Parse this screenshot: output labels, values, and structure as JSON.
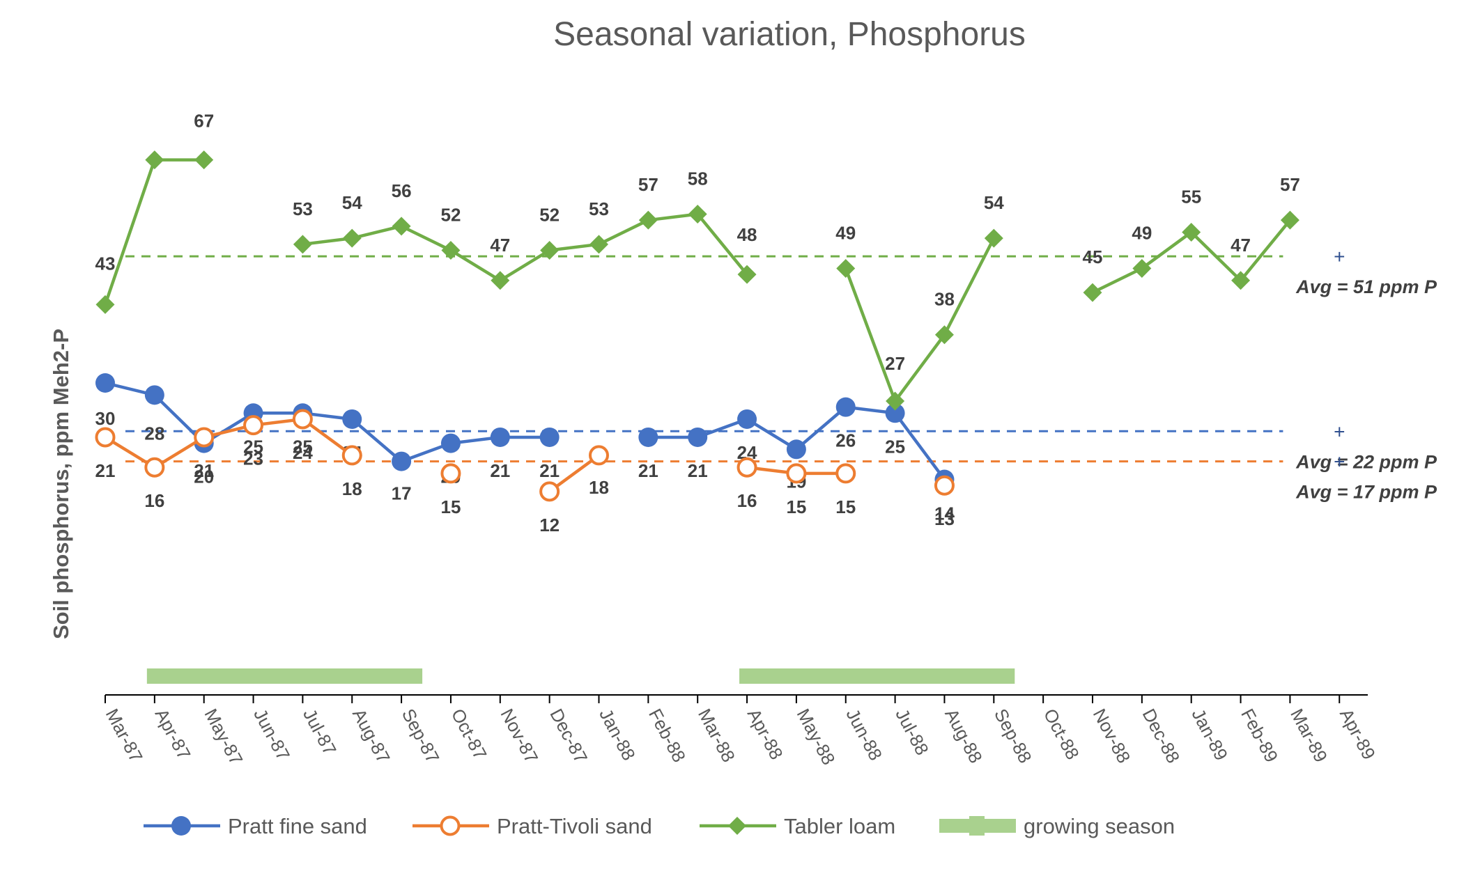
{
  "chart_data": {
    "type": "line",
    "title": "Seasonal variation, Phosphorus",
    "ylabel": "Soil phosphorus, ppm Meh2-P",
    "xlabel": "",
    "x_ticks": [
      "Mar-87",
      "Apr-87",
      "May-87",
      "Jun-87",
      "Jul-87",
      "Aug-87",
      "Sep-87",
      "Oct-87",
      "Nov-87",
      "Dec-87",
      "Jan-88",
      "Feb-88",
      "Mar-88",
      "Apr-88",
      "May-88",
      "Jun-88",
      "Jul-88",
      "Aug-88",
      "Sep-88",
      "Oct-88",
      "Nov-88",
      "Dec-88",
      "Jan-89",
      "Feb-89",
      "Mar-89",
      "Apr-89"
    ],
    "colors": {
      "pratt_fine_sand": "#4472C4",
      "pratt_tivoli_sand": "#ED7D31",
      "tabler_loam": "#70AD47",
      "growing_season": "#A9D18E"
    },
    "series": [
      {
        "name": "Pratt fine sand",
        "marker": "filled-circle",
        "points": [
          {
            "x": "Mar-87",
            "y": 30
          },
          {
            "x": "Apr-87",
            "y": 28
          },
          {
            "x": "May-87",
            "y": 20
          },
          {
            "x": "Jun-87",
            "y": 25
          },
          {
            "x": "Jul-87",
            "y": 25
          },
          {
            "x": "Aug-87",
            "y": 24
          },
          {
            "x": "Sep-87",
            "y": 17
          },
          {
            "x": "Oct-87",
            "y": 20
          },
          {
            "x": "Nov-87",
            "y": 21
          },
          {
            "x": "Dec-87",
            "y": 21
          },
          {
            "x": "Feb-88",
            "y": 21
          },
          {
            "x": "Mar-88",
            "y": 21
          },
          {
            "x": "Apr-88",
            "y": 24
          },
          {
            "x": "May-88",
            "y": 19
          },
          {
            "x": "Jun-88",
            "y": 26
          },
          {
            "x": "Jul-88",
            "y": 25
          },
          {
            "x": "Aug-88",
            "y": 14
          }
        ],
        "average": 22,
        "average_label": "Avg = 22 ppm P"
      },
      {
        "name": "Pratt-Tivoli sand",
        "marker": "hollow-circle",
        "points": [
          {
            "x": "Mar-87",
            "y": 21
          },
          {
            "x": "Apr-87",
            "y": 16
          },
          {
            "x": "May-87",
            "y": 21
          },
          {
            "x": "Jun-87",
            "y": 23
          },
          {
            "x": "Jul-87",
            "y": 24
          },
          {
            "x": "Aug-87",
            "y": 18
          },
          {
            "x": "Oct-87",
            "y": 15
          },
          {
            "x": "Dec-87",
            "y": 12
          },
          {
            "x": "Jan-88",
            "y": 18
          },
          {
            "x": "Apr-88",
            "y": 16
          },
          {
            "x": "May-88",
            "y": 15
          },
          {
            "x": "Jun-88",
            "y": 15
          },
          {
            "x": "Aug-88",
            "y": 13
          }
        ],
        "average": 17,
        "average_label": "Avg = 17 ppm P"
      },
      {
        "name": "Tabler loam",
        "marker": "diamond",
        "points": [
          {
            "x": "Mar-87",
            "y": 43
          },
          {
            "x": "Apr-87",
            "y": 67
          },
          {
            "x": "May-87",
            "y": 67
          },
          {
            "x": "Jul-87",
            "y": 53
          },
          {
            "x": "Aug-87",
            "y": 54
          },
          {
            "x": "Sep-87",
            "y": 56
          },
          {
            "x": "Oct-87",
            "y": 52
          },
          {
            "x": "Nov-87",
            "y": 47
          },
          {
            "x": "Dec-87",
            "y": 52
          },
          {
            "x": "Jan-88",
            "y": 53
          },
          {
            "x": "Feb-88",
            "y": 57
          },
          {
            "x": "Mar-88",
            "y": 58
          },
          {
            "x": "Apr-88",
            "y": 48
          },
          {
            "x": "Jun-88",
            "y": 49
          },
          {
            "x": "Jul-88",
            "y": 27
          },
          {
            "x": "Aug-88",
            "y": 38
          },
          {
            "x": "Sep-88",
            "y": 54
          },
          {
            "x": "Nov-88",
            "y": 45
          },
          {
            "x": "Dec-88",
            "y": 49
          },
          {
            "x": "Jan-89",
            "y": 55
          },
          {
            "x": "Feb-89",
            "y": 47
          },
          {
            "x": "Mar-89",
            "y": 57
          }
        ],
        "average": 51,
        "average_label": "Avg = 51 ppm P"
      }
    ],
    "growing_season": {
      "name": "growing season",
      "periods": [
        [
          "Apr-87",
          "Sep-87"
        ],
        [
          "Apr-88",
          "Sep-88"
        ]
      ]
    },
    "legend": [
      "Pratt fine sand",
      "Pratt-Tivoli sand",
      "Tabler loam",
      "growing season"
    ],
    "legend_position": "bottom",
    "grid": false,
    "average_marker": "+"
  }
}
